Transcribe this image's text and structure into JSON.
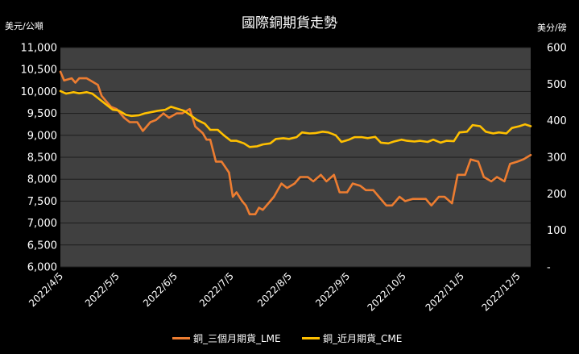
{
  "chart_data": {
    "type": "line",
    "title": "國際銅期貨走勢",
    "y_left_unit": "美元/公噸",
    "y_right_unit": "美分/磅",
    "ylim_left": [
      6000,
      11000
    ],
    "ylim_right": [
      0,
      600
    ],
    "yticks_left": [
      "6,000",
      "6,500",
      "7,000",
      "7,500",
      "8,000",
      "8,500",
      "9,000",
      "9,500",
      "10,000",
      "10,500",
      "11,000"
    ],
    "yticks_right": [
      "-",
      "100",
      "200",
      "300",
      "400",
      "500",
      "600"
    ],
    "xlim": [
      "2022-04-05",
      "2022-12-12"
    ],
    "xticks": [
      "2022/4/5",
      "2022/5/5",
      "2022/6/5",
      "2022/7/5",
      "2022/8/5",
      "2022/9/5",
      "2022/10/5",
      "2022/11/5",
      "2022/12/5"
    ],
    "grid": true,
    "legend_position": "bottom",
    "series": [
      {
        "name": "銅_三個月期貨_LME",
        "axis": "left",
        "color": "#ed7d31",
        "points": [
          [
            "2022-04-05",
            10450
          ],
          [
            "2022-04-07",
            10250
          ],
          [
            "2022-04-11",
            10300
          ],
          [
            "2022-04-13",
            10200
          ],
          [
            "2022-04-15",
            10300
          ],
          [
            "2022-04-19",
            10300
          ],
          [
            "2022-04-21",
            10250
          ],
          [
            "2022-04-25",
            10150
          ],
          [
            "2022-04-27",
            9900
          ],
          [
            "2022-04-29",
            9800
          ],
          [
            "2022-05-02",
            9650
          ],
          [
            "2022-05-05",
            9600
          ],
          [
            "2022-05-09",
            9400
          ],
          [
            "2022-05-12",
            9300
          ],
          [
            "2022-05-16",
            9300
          ],
          [
            "2022-05-19",
            9100
          ],
          [
            "2022-05-23",
            9300
          ],
          [
            "2022-05-26",
            9350
          ],
          [
            "2022-05-30",
            9500
          ],
          [
            "2022-06-02",
            9400
          ],
          [
            "2022-06-06",
            9500
          ],
          [
            "2022-06-09",
            9500
          ],
          [
            "2022-06-13",
            9600
          ],
          [
            "2022-06-16",
            9200
          ],
          [
            "2022-06-20",
            9050
          ],
          [
            "2022-06-22",
            8900
          ],
          [
            "2022-06-24",
            8900
          ],
          [
            "2022-06-27",
            8400
          ],
          [
            "2022-06-30",
            8400
          ],
          [
            "2022-07-04",
            8150
          ],
          [
            "2022-07-06",
            7600
          ],
          [
            "2022-07-08",
            7700
          ],
          [
            "2022-07-11",
            7500
          ],
          [
            "2022-07-13",
            7400
          ],
          [
            "2022-07-15",
            7200
          ],
          [
            "2022-07-18",
            7200
          ],
          [
            "2022-07-20",
            7350
          ],
          [
            "2022-07-22",
            7300
          ],
          [
            "2022-07-25",
            7450
          ],
          [
            "2022-07-28",
            7600
          ],
          [
            "2022-08-01",
            7900
          ],
          [
            "2022-08-04",
            7800
          ],
          [
            "2022-08-08",
            7900
          ],
          [
            "2022-08-11",
            8050
          ],
          [
            "2022-08-15",
            8050
          ],
          [
            "2022-08-18",
            7950
          ],
          [
            "2022-08-22",
            8100
          ],
          [
            "2022-08-25",
            7950
          ],
          [
            "2022-08-29",
            8100
          ],
          [
            "2022-09-01",
            7700
          ],
          [
            "2022-09-05",
            7700
          ],
          [
            "2022-09-08",
            7900
          ],
          [
            "2022-09-12",
            7850
          ],
          [
            "2022-09-15",
            7750
          ],
          [
            "2022-09-19",
            7750
          ],
          [
            "2022-09-22",
            7600
          ],
          [
            "2022-09-26",
            7400
          ],
          [
            "2022-09-29",
            7400
          ],
          [
            "2022-10-03",
            7600
          ],
          [
            "2022-10-06",
            7500
          ],
          [
            "2022-10-10",
            7550
          ],
          [
            "2022-10-13",
            7550
          ],
          [
            "2022-10-17",
            7550
          ],
          [
            "2022-10-20",
            7400
          ],
          [
            "2022-10-24",
            7600
          ],
          [
            "2022-10-27",
            7600
          ],
          [
            "2022-10-31",
            7450
          ],
          [
            "2022-11-03",
            8100
          ],
          [
            "2022-11-07",
            8100
          ],
          [
            "2022-11-10",
            8450
          ],
          [
            "2022-11-14",
            8400
          ],
          [
            "2022-11-17",
            8050
          ],
          [
            "2022-11-21",
            7950
          ],
          [
            "2022-11-24",
            8050
          ],
          [
            "2022-11-28",
            7950
          ],
          [
            "2022-12-01",
            8350
          ],
          [
            "2022-12-05",
            8400
          ],
          [
            "2022-12-08",
            8450
          ],
          [
            "2022-12-12",
            8550
          ]
        ]
      },
      {
        "name": "銅_近月期貨_CME",
        "axis": "right",
        "color": "#ffc000",
        "points": [
          [
            "2022-04-05",
            481
          ],
          [
            "2022-04-08",
            474
          ],
          [
            "2022-04-12",
            478
          ],
          [
            "2022-04-15",
            475
          ],
          [
            "2022-04-19",
            478
          ],
          [
            "2022-04-22",
            474
          ],
          [
            "2022-04-26",
            458
          ],
          [
            "2022-04-29",
            446
          ],
          [
            "2022-05-03",
            430
          ],
          [
            "2022-05-06",
            428
          ],
          [
            "2022-05-10",
            416
          ],
          [
            "2022-05-13",
            413
          ],
          [
            "2022-05-17",
            415
          ],
          [
            "2022-05-20",
            420
          ],
          [
            "2022-05-24",
            424
          ],
          [
            "2022-05-27",
            427
          ],
          [
            "2022-05-31",
            430
          ],
          [
            "2022-06-03",
            438
          ],
          [
            "2022-06-07",
            432
          ],
          [
            "2022-06-10",
            427
          ],
          [
            "2022-06-14",
            413
          ],
          [
            "2022-06-17",
            402
          ],
          [
            "2022-06-21",
            392
          ],
          [
            "2022-06-24",
            375
          ],
          [
            "2022-06-28",
            375
          ],
          [
            "2022-07-01",
            361
          ],
          [
            "2022-07-05",
            345
          ],
          [
            "2022-07-08",
            345
          ],
          [
            "2022-07-12",
            338
          ],
          [
            "2022-07-15",
            328
          ],
          [
            "2022-07-19",
            330
          ],
          [
            "2022-07-22",
            335
          ],
          [
            "2022-07-26",
            338
          ],
          [
            "2022-07-29",
            350
          ],
          [
            "2022-08-02",
            352
          ],
          [
            "2022-08-05",
            350
          ],
          [
            "2022-08-09",
            355
          ],
          [
            "2022-08-12",
            368
          ],
          [
            "2022-08-16",
            365
          ],
          [
            "2022-08-19",
            366
          ],
          [
            "2022-08-23",
            370
          ],
          [
            "2022-08-26",
            368
          ],
          [
            "2022-08-30",
            360
          ],
          [
            "2022-09-02",
            342
          ],
          [
            "2022-09-06",
            348
          ],
          [
            "2022-09-09",
            355
          ],
          [
            "2022-09-13",
            355
          ],
          [
            "2022-09-16",
            352
          ],
          [
            "2022-09-20",
            356
          ],
          [
            "2022-09-23",
            340
          ],
          [
            "2022-09-27",
            338
          ],
          [
            "2022-09-30",
            343
          ],
          [
            "2022-10-04",
            348
          ],
          [
            "2022-10-07",
            345
          ],
          [
            "2022-10-11",
            343
          ],
          [
            "2022-10-14",
            345
          ],
          [
            "2022-10-18",
            342
          ],
          [
            "2022-10-21",
            348
          ],
          [
            "2022-10-25",
            340
          ],
          [
            "2022-10-28",
            345
          ],
          [
            "2022-11-01",
            344
          ],
          [
            "2022-11-04",
            368
          ],
          [
            "2022-11-08",
            370
          ],
          [
            "2022-11-11",
            388
          ],
          [
            "2022-11-15",
            385
          ],
          [
            "2022-11-18",
            370
          ],
          [
            "2022-11-22",
            365
          ],
          [
            "2022-11-25",
            368
          ],
          [
            "2022-11-29",
            365
          ],
          [
            "2022-12-02",
            380
          ],
          [
            "2022-12-06",
            385
          ],
          [
            "2022-12-09",
            390
          ],
          [
            "2022-12-12",
            385
          ]
        ]
      }
    ]
  }
}
